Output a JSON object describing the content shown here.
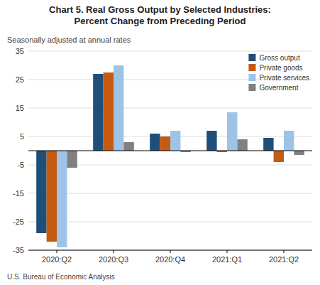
{
  "chart_data": {
    "type": "bar",
    "title": "Chart 5. Real Gross Output by Selected Industries:\nPercent Change from Preceding Period",
    "subtitle": "Seasonally adjusted at annual rates",
    "annotations": [
      "U.S. Bureau of Economic Analysis"
    ],
    "categories": [
      "2020:Q2",
      "2020:Q3",
      "2020:Q4",
      "2021:Q1",
      "2021:Q2"
    ],
    "series": [
      {
        "name": "Gross output",
        "color": "#1f4e79",
        "values": [
          -29.0,
          27.0,
          6.0,
          7.0,
          4.5
        ]
      },
      {
        "name": "Private goods",
        "color": "#c55a11",
        "values": [
          -32.0,
          27.5,
          5.0,
          -0.5,
          -4.0
        ]
      },
      {
        "name": "Private services",
        "color": "#9dc3e6",
        "values": [
          -34.0,
          30.0,
          7.0,
          13.5,
          7.0
        ]
      },
      {
        "name": "Government",
        "color": "#808080",
        "values": [
          -6.0,
          3.0,
          -0.5,
          4.0,
          -1.5
        ]
      }
    ],
    "ylim": [
      -35,
      35
    ],
    "yticks": [
      -35,
      -25,
      -15,
      -5,
      5,
      15,
      25,
      35
    ],
    "grid": true,
    "legend": "upper right"
  }
}
